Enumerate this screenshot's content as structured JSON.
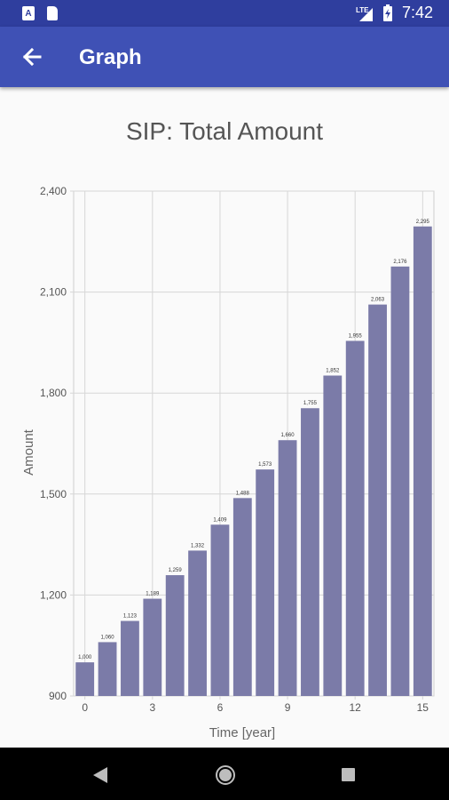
{
  "status_bar": {
    "time": "7:42",
    "notification_icon_a": "A",
    "icons": [
      "app-notification-icon",
      "sd-card-icon",
      "lte-signal-icon",
      "battery-icon"
    ]
  },
  "app_bar": {
    "title": "Graph",
    "back_icon": "arrow-left-icon"
  },
  "chart_data": {
    "type": "bar",
    "title": "SIP: Total Amount",
    "xlabel": "Time [year]",
    "ylabel": "Amount",
    "x": [
      0,
      1,
      2,
      3,
      4,
      5,
      6,
      7,
      8,
      9,
      10,
      11,
      12,
      13,
      14,
      15
    ],
    "values": [
      1000,
      1060,
      1123,
      1189,
      1259,
      1332,
      1409,
      1488,
      1573,
      1660,
      1755,
      1852,
      1955,
      2063,
      2176,
      2295
    ],
    "value_labels": [
      "1,000",
      "1,060",
      "1,123",
      "1,189",
      "1,259",
      "1,332",
      "1,409",
      "1,488",
      "1,573",
      "1,660",
      "1,755",
      "1,852",
      "1,955",
      "2,063",
      "2,176",
      "2,295"
    ],
    "ylim": [
      900,
      2400
    ],
    "yticks": [
      900,
      1200,
      1500,
      1800,
      2100,
      2400
    ],
    "ytick_labels": [
      "900",
      "1,200",
      "1,500",
      "1,800",
      "2,100",
      "2,400"
    ],
    "xticks": [
      0,
      3,
      6,
      9,
      12,
      15
    ],
    "xtick_labels": [
      "0",
      "3",
      "6",
      "9",
      "12",
      "15"
    ],
    "grid": true,
    "bar_color": "#7b7ba8"
  },
  "nav_bar": {
    "back_icon": "nav-back-icon",
    "home_icon": "nav-home-icon",
    "recents_icon": "nav-recents-icon"
  }
}
